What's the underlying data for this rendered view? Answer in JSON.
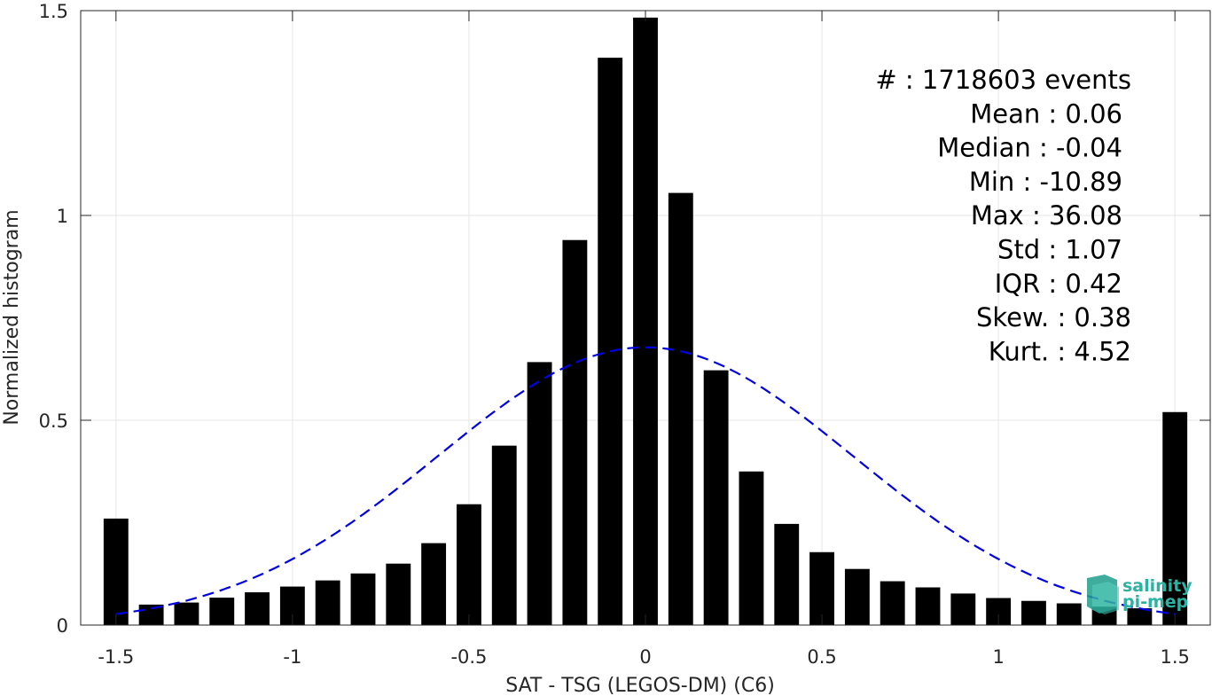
{
  "chart_data": {
    "type": "bar",
    "xlabel": "SAT - TSG (LEGOS-DM) (C6)",
    "ylabel": "Normalized histogram",
    "xlim": [
      -1.6,
      1.6
    ],
    "ylim": [
      0,
      1.5
    ],
    "xticks": [
      -1.5,
      -1,
      -0.5,
      0,
      0.5,
      1,
      1.5
    ],
    "xtick_labels": [
      "-1.5",
      "-1",
      "-0.5",
      "0",
      "0.5",
      "1",
      "1.5"
    ],
    "yticks": [
      0,
      0.5,
      1,
      1.5
    ],
    "ytick_labels": [
      "0",
      "0.5",
      "1",
      "1.5"
    ],
    "grid": true,
    "bar_color": "#000000",
    "x": [
      -1.5,
      -1.4,
      -1.3,
      -1.2,
      -1.1,
      -1.0,
      -0.9,
      -0.8,
      -0.7,
      -0.6,
      -0.5,
      -0.4,
      -0.3,
      -0.2,
      -0.1,
      0.0,
      0.1,
      0.2,
      0.3,
      0.4,
      0.5,
      0.6,
      0.7,
      0.8,
      0.9,
      1.0,
      1.1,
      1.2,
      1.3,
      1.4,
      1.5
    ],
    "values": [
      0.26,
      0.05,
      0.055,
      0.067,
      0.08,
      0.094,
      0.109,
      0.126,
      0.15,
      0.2,
      0.295,
      0.438,
      0.642,
      0.94,
      1.385,
      1.483,
      1.055,
      0.622,
      0.375,
      0.247,
      0.178,
      0.137,
      0.107,
      0.092,
      0.077,
      0.066,
      0.059,
      0.053,
      0.045,
      0.041,
      0.52
    ],
    "fit": {
      "type": "gaussian",
      "style": "dashed",
      "color": "#0000e6",
      "mean": 0.0,
      "std": 0.59,
      "peak": 0.678,
      "x_range": [
        -1.5,
        1.5
      ]
    },
    "annotations": [
      "#  : 1718603 events",
      "Mean : 0.06",
      "Median : -0.04",
      "Min : -10.89",
      "Max : 36.08",
      "Std : 1.07",
      "IQR : 0.42",
      "Skew. : 0.38",
      "Kurt. : 4.52"
    ]
  },
  "logo": {
    "line1": "salinity",
    "line2": "pi-mep",
    "color": "#2ab3a3"
  }
}
